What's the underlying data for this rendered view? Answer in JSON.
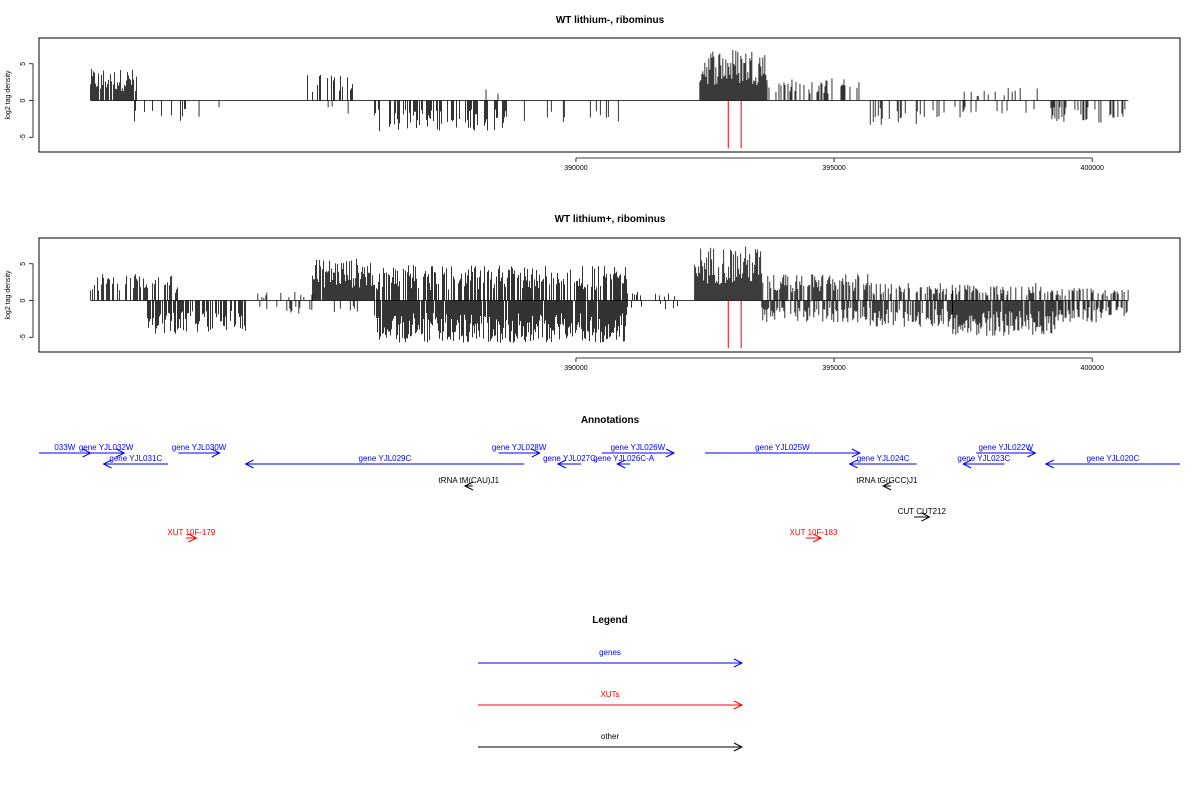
{
  "colors": {
    "genes": "#0000ff",
    "XUTs": "#ff0000",
    "other": "#000000",
    "marker": "#ff0000"
  },
  "chart_data": [
    {
      "type": "bar",
      "title": "WT lithium-, ribominus",
      "ylabel": "log2 tag density",
      "xlim": [
        379600,
        401700
      ],
      "ylim": [
        -7,
        8.5
      ],
      "xticks": [
        390000,
        395000,
        400000
      ],
      "yticks": [
        -5,
        0,
        5
      ],
      "baseline_range": [
        380600,
        400700
      ],
      "markers_x": [
        392950,
        393200
      ],
      "marker_depth": -6.5,
      "segments": [
        {
          "start": 380600,
          "end": 381500,
          "pos": 3.6,
          "neg": 0,
          "pos_density": 0.85,
          "neg_density": 0
        },
        {
          "start": 381200,
          "end": 382600,
          "pos": 0,
          "neg": -2.5,
          "pos_density": 0,
          "neg_density": 0.15
        },
        {
          "start": 382700,
          "end": 383300,
          "pos": 0,
          "neg": -2.0,
          "pos_density": 0,
          "neg_density": 0.1
        },
        {
          "start": 384800,
          "end": 385700,
          "pos": 3.0,
          "neg": 0,
          "pos_density": 0.35,
          "neg_density": 0
        },
        {
          "start": 385200,
          "end": 385900,
          "pos": 0,
          "neg": -1.5,
          "pos_density": 0,
          "neg_density": 0.1
        },
        {
          "start": 386100,
          "end": 388700,
          "pos": 0,
          "neg": -3.5,
          "pos_density": 0,
          "neg_density": 0.45
        },
        {
          "start": 388200,
          "end": 389000,
          "pos": 1.5,
          "neg": 0,
          "pos_density": 0.1,
          "neg_density": 0
        },
        {
          "start": 389000,
          "end": 391000,
          "pos": 0,
          "neg": -2.5,
          "pos_density": 0,
          "neg_density": 0.15
        },
        {
          "start": 392400,
          "end": 393700,
          "pos": 6.0,
          "neg": 0,
          "pos_density": 1.0,
          "neg_density": 0
        },
        {
          "start": 393700,
          "end": 395500,
          "pos": 2.5,
          "neg": 0,
          "pos_density": 0.35,
          "neg_density": 0
        },
        {
          "start": 395700,
          "end": 396800,
          "pos": 0,
          "neg": -2.8,
          "pos_density": 0,
          "neg_density": 0.4
        },
        {
          "start": 396800,
          "end": 398900,
          "pos": 0,
          "neg": -2.0,
          "pos_density": 0,
          "neg_density": 0.15
        },
        {
          "start": 397500,
          "end": 399200,
          "pos": 1.5,
          "neg": 0,
          "pos_density": 0.12,
          "neg_density": 0
        },
        {
          "start": 399200,
          "end": 400700,
          "pos": 0,
          "neg": -2.5,
          "pos_density": 0,
          "neg_density": 0.3
        }
      ]
    },
    {
      "type": "bar",
      "title": "WT lithium+, ribominus",
      "ylabel": "log2 tag density",
      "xlim": [
        379600,
        401700
      ],
      "ylim": [
        -7,
        8.5
      ],
      "xticks": [
        390000,
        395000,
        400000
      ],
      "yticks": [
        -5,
        0,
        5
      ],
      "baseline_range": [
        380600,
        400700
      ],
      "markers_x": [
        392950,
        393200
      ],
      "marker_depth": -6.5,
      "segments": [
        {
          "start": 380600,
          "end": 382300,
          "pos": 3.0,
          "neg": 0,
          "pos_density": 0.6,
          "neg_density": 0
        },
        {
          "start": 381700,
          "end": 383600,
          "pos": 0,
          "neg": -3.8,
          "pos_density": 0,
          "neg_density": 0.7
        },
        {
          "start": 383800,
          "end": 384900,
          "pos": 1.0,
          "neg": -1.5,
          "pos_density": 0.15,
          "neg_density": 0.15
        },
        {
          "start": 384900,
          "end": 386100,
          "pos": 4.8,
          "neg": 0,
          "pos_density": 0.95,
          "neg_density": 0
        },
        {
          "start": 385300,
          "end": 385800,
          "pos": 0,
          "neg": -1.5,
          "pos_density": 0,
          "neg_density": 0.2
        },
        {
          "start": 386100,
          "end": 391000,
          "pos": 4.0,
          "neg": -4.8,
          "pos_density": 0.7,
          "neg_density": 0.95
        },
        {
          "start": 391000,
          "end": 392200,
          "pos": 1.0,
          "neg": -1.0,
          "pos_density": 0.15,
          "neg_density": 0.15
        },
        {
          "start": 392300,
          "end": 393600,
          "pos": 6.2,
          "neg": 0,
          "pos_density": 1.0,
          "neg_density": 0
        },
        {
          "start": 393600,
          "end": 395700,
          "pos": 3.0,
          "neg": -2.5,
          "pos_density": 0.7,
          "neg_density": 0.6
        },
        {
          "start": 395700,
          "end": 397300,
          "pos": 2.0,
          "neg": -3.0,
          "pos_density": 0.5,
          "neg_density": 0.75
        },
        {
          "start": 397300,
          "end": 399300,
          "pos": 2.0,
          "neg": -4.0,
          "pos_density": 0.45,
          "neg_density": 0.95
        },
        {
          "start": 399300,
          "end": 400700,
          "pos": 1.5,
          "neg": -2.5,
          "pos_density": 0.35,
          "neg_density": 0.6
        }
      ]
    }
  ],
  "annotations": {
    "title": "Annotations",
    "xlim": [
      379600,
      401700
    ],
    "features": [
      {
        "label": "033W",
        "start": 379600,
        "end": 380600,
        "strand": "+",
        "type": "genes",
        "row": 0
      },
      {
        "label": "gene YJL032W",
        "start": 380550,
        "end": 381250,
        "strand": "+",
        "type": "genes",
        "row": 0
      },
      {
        "label": "gene YJL031C",
        "start": 380850,
        "end": 382100,
        "strand": "-",
        "type": "genes",
        "row": 1
      },
      {
        "label": "gene YJL030W",
        "start": 382300,
        "end": 383100,
        "strand": "+",
        "type": "genes",
        "row": 0
      },
      {
        "label": "gene YJL029C",
        "start": 383600,
        "end": 389000,
        "strand": "-",
        "type": "genes",
        "row": 1
      },
      {
        "label": "gene YJL028W",
        "start": 388500,
        "end": 389300,
        "strand": "+",
        "type": "genes",
        "row": 0
      },
      {
        "label": "gene YJL027C",
        "start": 389650,
        "end": 390100,
        "strand": "-",
        "type": "genes",
        "row": 1
      },
      {
        "label": "gene YJL026W",
        "start": 390500,
        "end": 391900,
        "strand": "+",
        "type": "genes",
        "row": 0
      },
      {
        "label": "gene YJL026C-A",
        "start": 390800,
        "end": 391050,
        "strand": "-",
        "type": "genes",
        "row": 1
      },
      {
        "label": "gene YJL025W",
        "start": 392500,
        "end": 395500,
        "strand": "+",
        "type": "genes",
        "row": 0
      },
      {
        "label": "gene YJL024C",
        "start": 395300,
        "end": 396600,
        "strand": "-",
        "type": "genes",
        "row": 1
      },
      {
        "label": "gene YJL023C",
        "start": 397500,
        "end": 398300,
        "strand": "-",
        "type": "genes",
        "row": 1
      },
      {
        "label": "gene YJL022W",
        "start": 397750,
        "end": 398900,
        "strand": "+",
        "type": "genes",
        "row": 0
      },
      {
        "label": "gene YJL020C",
        "start": 399100,
        "end": 401700,
        "strand": "-",
        "type": "genes",
        "row": 1
      },
      {
        "label": "tRNA tM(CAU)J1",
        "start": 387850,
        "end": 388000,
        "strand": "-",
        "type": "other",
        "row": 2
      },
      {
        "label": "tRNA tG(GCC)J1",
        "start": 395950,
        "end": 396100,
        "strand": "-",
        "type": "other",
        "row": 2
      },
      {
        "label": "CUT CUT212",
        "start": 396550,
        "end": 396850,
        "strand": "+",
        "type": "other",
        "row": 3
      },
      {
        "label": "XUT 10F-179",
        "start": 382450,
        "end": 382650,
        "strand": "+",
        "type": "XUTs",
        "row": 4
      },
      {
        "label": "XUT 10F-183",
        "start": 394450,
        "end": 394750,
        "strand": "+",
        "type": "XUTs",
        "row": 4
      }
    ]
  },
  "legend": {
    "title": "Legend",
    "items": [
      {
        "label": "genes",
        "type": "genes"
      },
      {
        "label": "XUTs",
        "type": "XUTs"
      },
      {
        "label": "other",
        "type": "other"
      }
    ]
  }
}
